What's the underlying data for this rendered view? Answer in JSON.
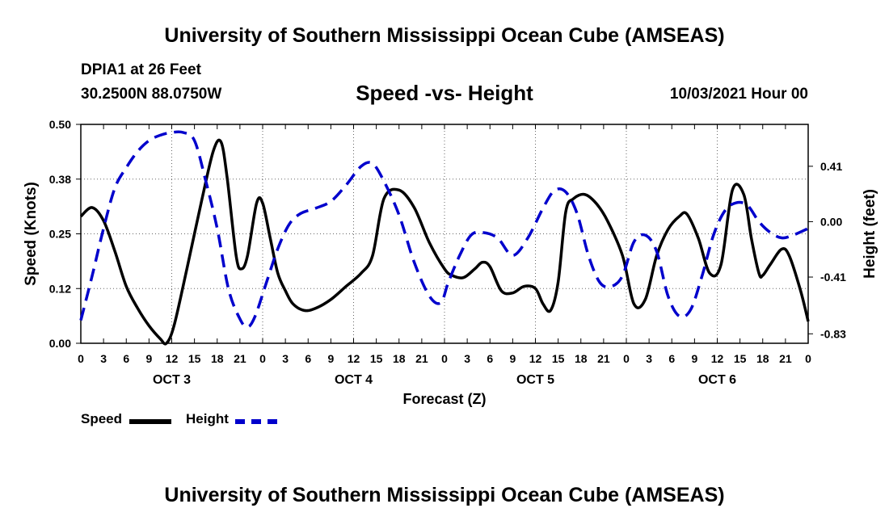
{
  "header": {
    "title": "University of Southern Mississippi Ocean Cube (AMSEAS)",
    "station": "DPIA1 at 26 Feet",
    "coords": "30.2500N  88.0750W",
    "chart_title": "Speed -vs- Height",
    "timestamp": "10/03/2021 Hour 00"
  },
  "footer": {
    "title": "University of Southern Mississippi Ocean Cube (AMSEAS)"
  },
  "legend": {
    "speed_label": "Speed",
    "height_label": "Height"
  },
  "colors": {
    "speed": "#000000",
    "height": "#0000cc"
  },
  "chart_data": {
    "type": "line",
    "title": "Speed -vs- Height",
    "xlabel": "Forecast (Z)",
    "ylabel": "Speed (Knots)",
    "y2label": "Height (feet)",
    "xlim": [
      0,
      96
    ],
    "ylim": [
      0,
      0.5
    ],
    "y2lim": [
      -0.9,
      0.72
    ],
    "x_tick_labels": [
      "0",
      "3",
      "6",
      "9",
      "12",
      "15",
      "18",
      "21",
      "0",
      "3",
      "6",
      "9",
      "12",
      "15",
      "18",
      "21",
      "0",
      "3",
      "6",
      "9",
      "12",
      "15",
      "18",
      "21",
      "0",
      "3",
      "6",
      "9",
      "12",
      "15",
      "18",
      "21",
      "0"
    ],
    "day_labels": [
      {
        "label": "OCT 3",
        "x": 12
      },
      {
        "label": "OCT 4",
        "x": 36
      },
      {
        "label": "OCT 5",
        "x": 60
      },
      {
        "label": "OCT 6",
        "x": 84
      }
    ],
    "y_ticks": [
      {
        "label": "0.00",
        "value": 0.0
      },
      {
        "label": "0.12",
        "value": 0.125
      },
      {
        "label": "0.25",
        "value": 0.25
      },
      {
        "label": "0.38",
        "value": 0.375
      },
      {
        "label": "0.50",
        "value": 0.5
      }
    ],
    "y2_ticks": [
      {
        "label": "0.41",
        "value": 0.41
      },
      {
        "label": "0.00",
        "value": 0.0
      },
      {
        "label": "-0.41",
        "value": -0.41
      },
      {
        "label": "-0.83",
        "value": -0.83
      }
    ],
    "series": [
      {
        "name": "Speed",
        "axis": "left",
        "style": "solid",
        "x": [
          0,
          1.5,
          3,
          4.5,
          6,
          7.5,
          9,
          10.5,
          11.3,
          12.3,
          14,
          16,
          17.5,
          18.5,
          19.3,
          20.5,
          21.2,
          22,
          23.2,
          24,
          25,
          26,
          27,
          28,
          29.5,
          31,
          33,
          35,
          37,
          38.5,
          40,
          42,
          44,
          46,
          48,
          49,
          50.5,
          52,
          53,
          54,
          55.5,
          57,
          58.5,
          60,
          61,
          62,
          63,
          64,
          65,
          66.5,
          68,
          69.5,
          71.5,
          73,
          74.5,
          76,
          77.5,
          79,
          80,
          81.5,
          83,
          84.5,
          86,
          87.5,
          88.5,
          89.5,
          90,
          91,
          92.5,
          93.5,
          95,
          96
        ],
        "values": [
          0.29,
          0.31,
          0.28,
          0.21,
          0.13,
          0.08,
          0.04,
          0.01,
          0.0,
          0.04,
          0.17,
          0.33,
          0.44,
          0.46,
          0.38,
          0.2,
          0.17,
          0.2,
          0.32,
          0.32,
          0.24,
          0.16,
          0.12,
          0.09,
          0.075,
          0.08,
          0.1,
          0.13,
          0.16,
          0.2,
          0.33,
          0.35,
          0.31,
          0.23,
          0.17,
          0.155,
          0.15,
          0.17,
          0.185,
          0.175,
          0.12,
          0.115,
          0.13,
          0.125,
          0.09,
          0.075,
          0.14,
          0.3,
          0.33,
          0.34,
          0.32,
          0.28,
          0.2,
          0.09,
          0.1,
          0.2,
          0.26,
          0.29,
          0.295,
          0.24,
          0.16,
          0.18,
          0.35,
          0.34,
          0.24,
          0.16,
          0.155,
          0.18,
          0.215,
          0.2,
          0.12,
          0.05
        ]
      },
      {
        "name": "Height",
        "axis": "right",
        "style": "dashed",
        "x": [
          0,
          1.5,
          3,
          4.5,
          6,
          7.5,
          9,
          10.5,
          12,
          13.5,
          15,
          16.5,
          18,
          19.5,
          21,
          22,
          23,
          24.5,
          26,
          27.5,
          29,
          31,
          33,
          35,
          37,
          38.5,
          40,
          42,
          44,
          46,
          47.5,
          48.5,
          50,
          51.5,
          53,
          55,
          57,
          59,
          61,
          62.5,
          64,
          65.5,
          67,
          68.5,
          70,
          71.5,
          73,
          74.5,
          76,
          77.5,
          79,
          80.5,
          82,
          83.5,
          85,
          86.5,
          88,
          89.5,
          91,
          92.5,
          94,
          96
        ],
        "values": [
          -0.73,
          -0.4,
          -0.05,
          0.25,
          0.4,
          0.52,
          0.6,
          0.64,
          0.66,
          0.66,
          0.6,
          0.3,
          -0.05,
          -0.5,
          -0.72,
          -0.78,
          -0.7,
          -0.45,
          -0.2,
          -0.02,
          0.06,
          0.1,
          0.15,
          0.27,
          0.41,
          0.43,
          0.3,
          0.05,
          -0.3,
          -0.55,
          -0.6,
          -0.45,
          -0.25,
          -0.1,
          -0.08,
          -0.12,
          -0.25,
          -0.12,
          0.1,
          0.23,
          0.22,
          0.06,
          -0.25,
          -0.45,
          -0.48,
          -0.4,
          -0.15,
          -0.1,
          -0.22,
          -0.55,
          -0.7,
          -0.65,
          -0.4,
          -0.1,
          0.08,
          0.14,
          0.12,
          0.0,
          -0.08,
          -0.12,
          -0.1,
          -0.05
        ]
      }
    ]
  }
}
